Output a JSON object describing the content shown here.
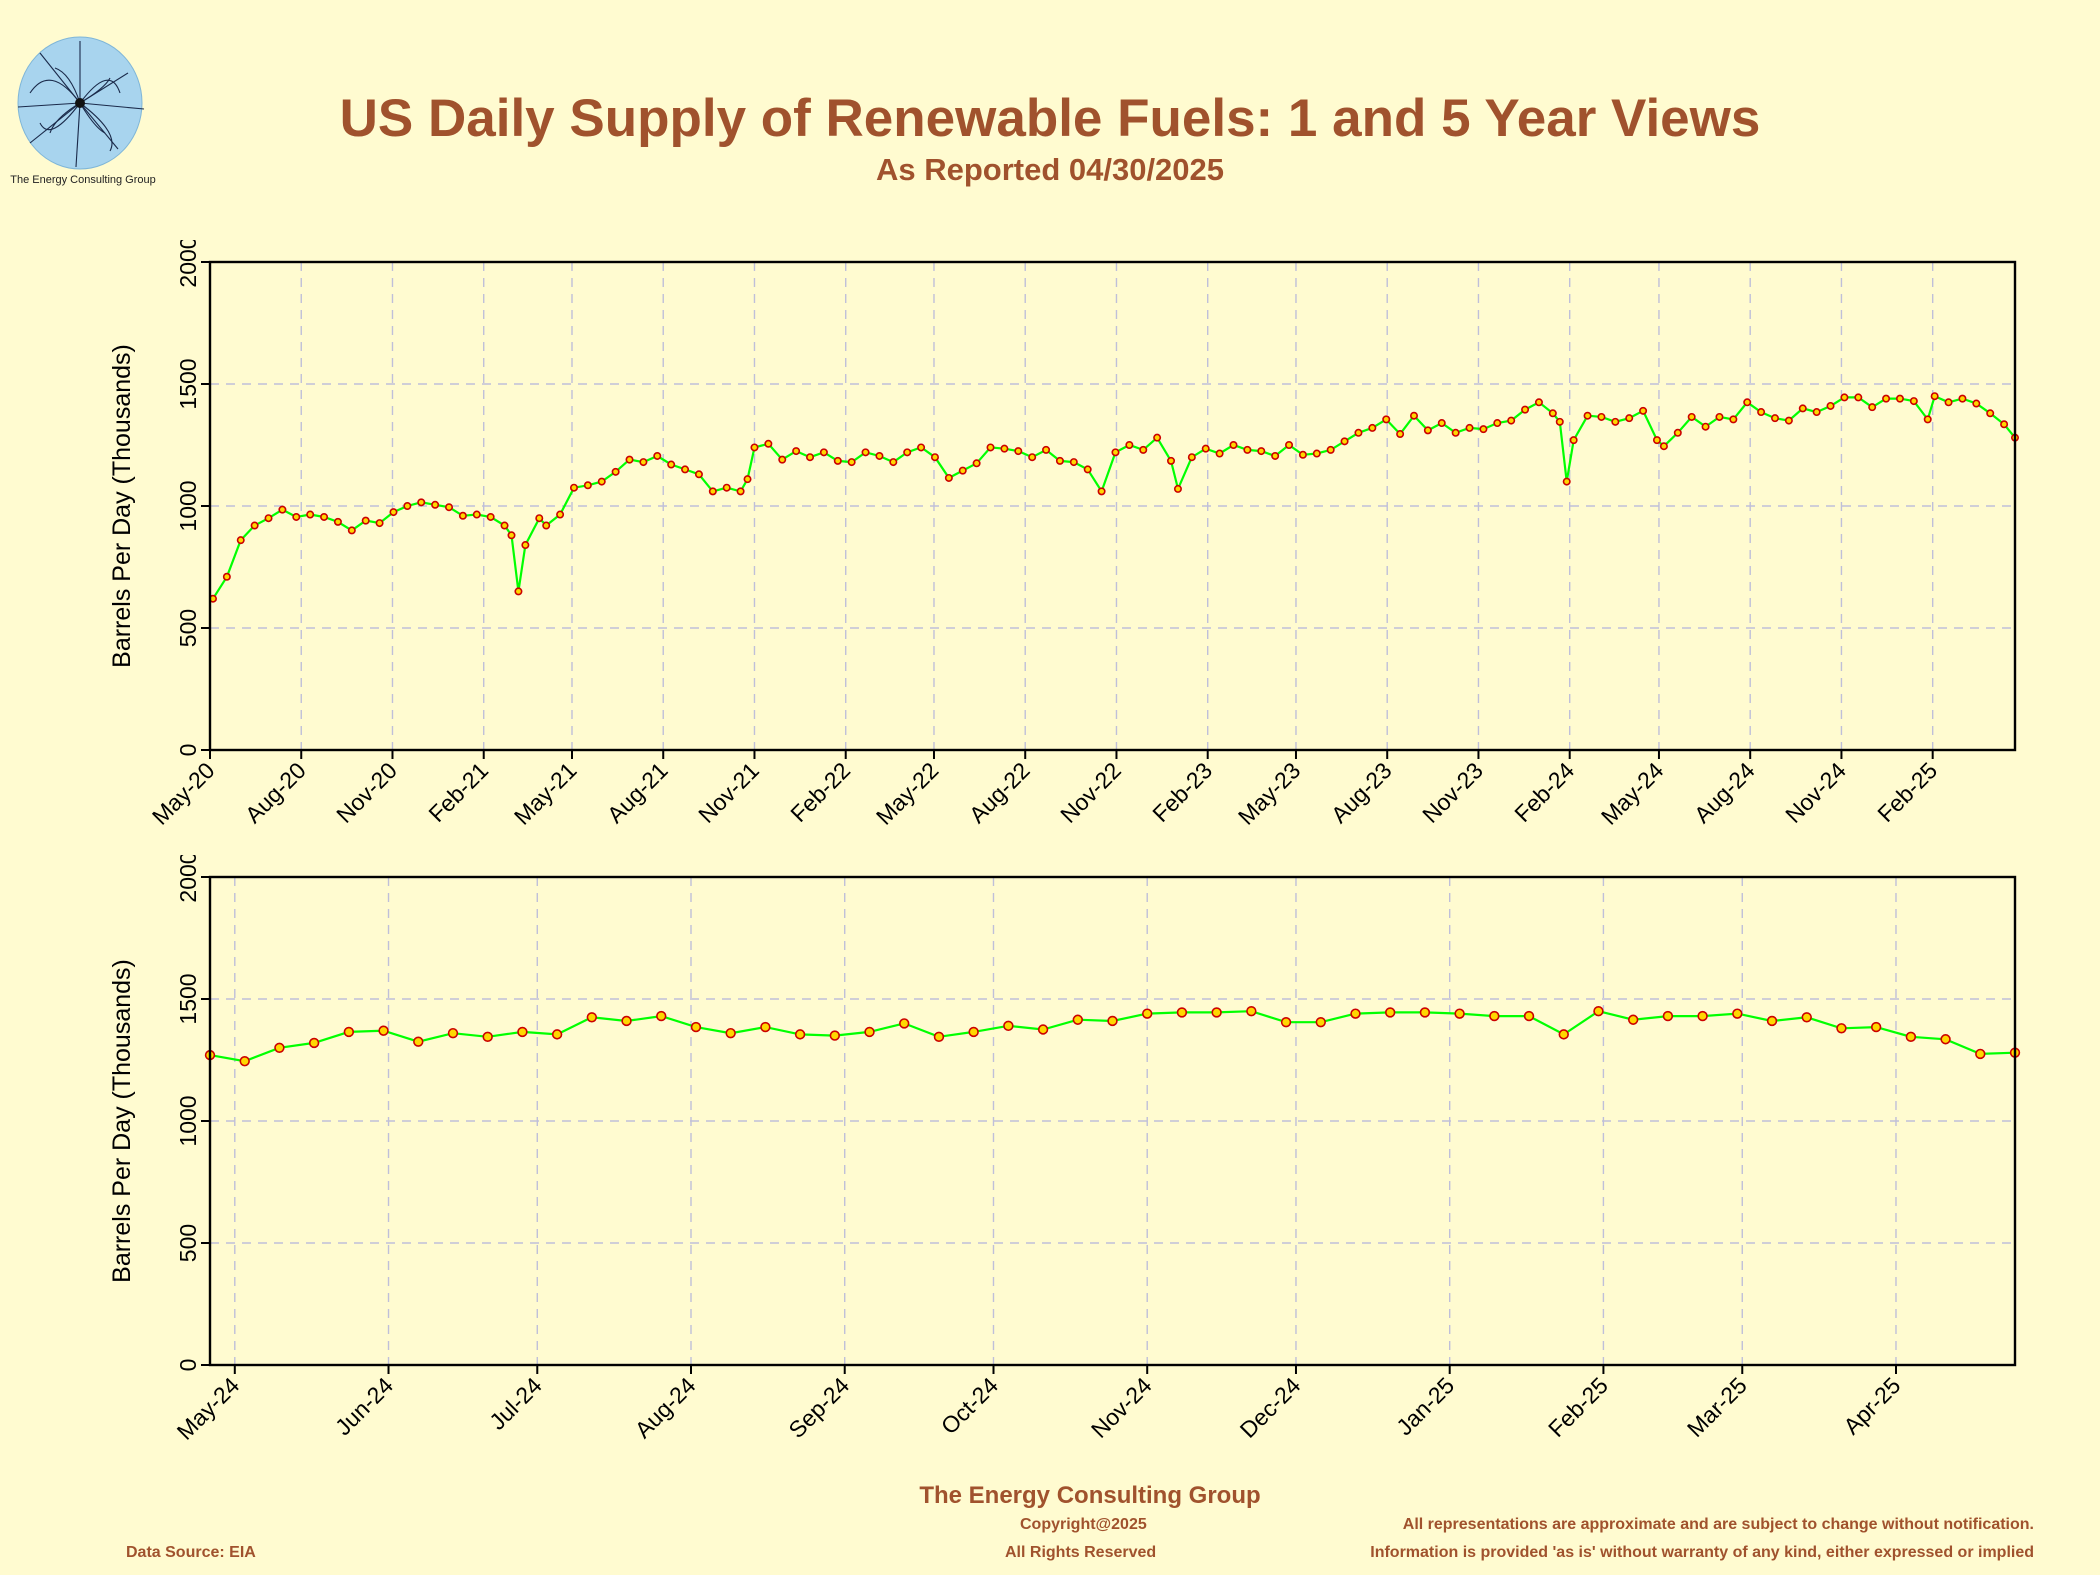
{
  "page": {
    "title": "US Daily Supply of Renewable Fuels: 1 and 5 Year Views",
    "subtitle": "As Reported 04/30/2025",
    "logo_caption": "The Energy Consulting Group",
    "footer": {
      "company": "The Energy Consulting Group",
      "copyright": "Copyright@2025",
      "rights": "All Rights Reserved",
      "data_source": "Data Source: EIA",
      "disclaimer_line1": "All representations are approximate and are subject to change without notification.",
      "disclaimer_line2": "Information is provided 'as is' without warranty of any kind, either expressed or implied"
    }
  },
  "colors": {
    "background": "#fffbd0",
    "line": "#00ff00",
    "marker_edge": "#cc0000",
    "marker_fill": "#ffd700",
    "grid": "#bfbfd9",
    "axis": "#000000",
    "title": "#a0522d"
  },
  "chart_data": [
    {
      "type": "line",
      "view": "5-year",
      "ylabel": "Barrels Per Day (Thousands)",
      "ylim": [
        0,
        2000
      ],
      "yticks": [
        0,
        500,
        1000,
        1500,
        2000
      ],
      "xlim": [
        "2020-05-01",
        "2025-04-25"
      ],
      "xticks": [
        {
          "date": "2020-05-01",
          "label": "May-20"
        },
        {
          "date": "2020-08-01",
          "label": "Aug-20"
        },
        {
          "date": "2020-11-01",
          "label": "Nov-20"
        },
        {
          "date": "2021-02-01",
          "label": "Feb-21"
        },
        {
          "date": "2021-05-01",
          "label": "May-21"
        },
        {
          "date": "2021-08-01",
          "label": "Aug-21"
        },
        {
          "date": "2021-11-01",
          "label": "Nov-21"
        },
        {
          "date": "2022-02-01",
          "label": "Feb-22"
        },
        {
          "date": "2022-05-01",
          "label": "May-22"
        },
        {
          "date": "2022-08-01",
          "label": "Aug-22"
        },
        {
          "date": "2022-11-01",
          "label": "Nov-22"
        },
        {
          "date": "2023-02-01",
          "label": "Feb-23"
        },
        {
          "date": "2023-05-01",
          "label": "May-23"
        },
        {
          "date": "2023-08-01",
          "label": "Aug-23"
        },
        {
          "date": "2023-11-01",
          "label": "Nov-23"
        },
        {
          "date": "2024-02-01",
          "label": "Feb-24"
        },
        {
          "date": "2024-05-01",
          "label": "May-24"
        },
        {
          "date": "2024-08-01",
          "label": "Aug-24"
        },
        {
          "date": "2024-11-01",
          "label": "Nov-24"
        },
        {
          "date": "2025-02-01",
          "label": "Feb-25"
        }
      ],
      "grid": true,
      "series": [
        {
          "marker": "circle",
          "points": [
            [
              "2020-05-04",
              620
            ],
            [
              "2020-05-18",
              710
            ],
            [
              "2020-06-01",
              860
            ],
            [
              "2020-06-15",
              920
            ],
            [
              "2020-06-29",
              950
            ],
            [
              "2020-07-13",
              985
            ],
            [
              "2020-07-27",
              955
            ],
            [
              "2020-08-10",
              965
            ],
            [
              "2020-08-24",
              955
            ],
            [
              "2020-09-07",
              935
            ],
            [
              "2020-09-21",
              900
            ],
            [
              "2020-10-05",
              940
            ],
            [
              "2020-10-19",
              930
            ],
            [
              "2020-11-02",
              975
            ],
            [
              "2020-11-16",
              1000
            ],
            [
              "2020-11-30",
              1015
            ],
            [
              "2020-12-14",
              1005
            ],
            [
              "2020-12-28",
              995
            ],
            [
              "2021-01-11",
              960
            ],
            [
              "2021-01-25",
              965
            ],
            [
              "2021-02-08",
              955
            ],
            [
              "2021-02-22",
              920
            ],
            [
              "2021-03-01",
              880
            ],
            [
              "2021-03-08",
              650
            ],
            [
              "2021-03-15",
              840
            ],
            [
              "2021-03-29",
              950
            ],
            [
              "2021-04-05",
              920
            ],
            [
              "2021-04-19",
              965
            ],
            [
              "2021-05-03",
              1075
            ],
            [
              "2021-05-17",
              1085
            ],
            [
              "2021-05-31",
              1100
            ],
            [
              "2021-06-14",
              1140
            ],
            [
              "2021-06-28",
              1190
            ],
            [
              "2021-07-12",
              1180
            ],
            [
              "2021-07-26",
              1205
            ],
            [
              "2021-08-09",
              1170
            ],
            [
              "2021-08-23",
              1150
            ],
            [
              "2021-09-06",
              1130
            ],
            [
              "2021-09-20",
              1060
            ],
            [
              "2021-10-04",
              1075
            ],
            [
              "2021-10-18",
              1060
            ],
            [
              "2021-10-25",
              1110
            ],
            [
              "2021-11-01",
              1240
            ],
            [
              "2021-11-15",
              1255
            ],
            [
              "2021-11-29",
              1190
            ],
            [
              "2021-12-13",
              1225
            ],
            [
              "2021-12-27",
              1200
            ],
            [
              "2022-01-10",
              1220
            ],
            [
              "2022-01-24",
              1185
            ],
            [
              "2022-02-07",
              1180
            ],
            [
              "2022-02-21",
              1220
            ],
            [
              "2022-03-07",
              1205
            ],
            [
              "2022-03-21",
              1180
            ],
            [
              "2022-04-04",
              1220
            ],
            [
              "2022-04-18",
              1240
            ],
            [
              "2022-05-02",
              1200
            ],
            [
              "2022-05-16",
              1115
            ],
            [
              "2022-05-30",
              1145
            ],
            [
              "2022-06-13",
              1175
            ],
            [
              "2022-06-27",
              1240
            ],
            [
              "2022-07-11",
              1235
            ],
            [
              "2022-07-25",
              1225
            ],
            [
              "2022-08-08",
              1200
            ],
            [
              "2022-08-22",
              1230
            ],
            [
              "2022-09-05",
              1185
            ],
            [
              "2022-09-19",
              1180
            ],
            [
              "2022-10-03",
              1150
            ],
            [
              "2022-10-17",
              1060
            ],
            [
              "2022-10-31",
              1220
            ],
            [
              "2022-11-14",
              1250
            ],
            [
              "2022-11-28",
              1230
            ],
            [
              "2022-12-12",
              1280
            ],
            [
              "2022-12-26",
              1185
            ],
            [
              "2023-01-02",
              1070
            ],
            [
              "2023-01-16",
              1200
            ],
            [
              "2023-01-30",
              1235
            ],
            [
              "2023-02-13",
              1215
            ],
            [
              "2023-02-27",
              1250
            ],
            [
              "2023-03-13",
              1230
            ],
            [
              "2023-03-27",
              1225
            ],
            [
              "2023-04-10",
              1205
            ],
            [
              "2023-04-24",
              1250
            ],
            [
              "2023-05-08",
              1210
            ],
            [
              "2023-05-22",
              1215
            ],
            [
              "2023-06-05",
              1230
            ],
            [
              "2023-06-19",
              1265
            ],
            [
              "2023-07-03",
              1300
            ],
            [
              "2023-07-17",
              1320
            ],
            [
              "2023-07-31",
              1355
            ],
            [
              "2023-08-14",
              1295
            ],
            [
              "2023-08-28",
              1370
            ],
            [
              "2023-09-11",
              1310
            ],
            [
              "2023-09-25",
              1340
            ],
            [
              "2023-10-09",
              1300
            ],
            [
              "2023-10-23",
              1320
            ],
            [
              "2023-11-06",
              1315
            ],
            [
              "2023-11-20",
              1340
            ],
            [
              "2023-12-04",
              1350
            ],
            [
              "2023-12-18",
              1395
            ],
            [
              "2024-01-01",
              1425
            ],
            [
              "2024-01-15",
              1380
            ],
            [
              "2024-01-22",
              1345
            ],
            [
              "2024-01-29",
              1100
            ],
            [
              "2024-02-05",
              1270
            ],
            [
              "2024-02-19",
              1370
            ],
            [
              "2024-03-04",
              1365
            ],
            [
              "2024-03-18",
              1345
            ],
            [
              "2024-04-01",
              1360
            ],
            [
              "2024-04-15",
              1390
            ],
            [
              "2024-04-29",
              1270
            ],
            [
              "2024-05-06",
              1245
            ],
            [
              "2024-05-20",
              1300
            ],
            [
              "2024-06-03",
              1365
            ],
            [
              "2024-06-17",
              1325
            ],
            [
              "2024-07-01",
              1365
            ],
            [
              "2024-07-15",
              1355
            ],
            [
              "2024-07-29",
              1425
            ],
            [
              "2024-08-12",
              1385
            ],
            [
              "2024-08-26",
              1360
            ],
            [
              "2024-09-09",
              1350
            ],
            [
              "2024-09-23",
              1400
            ],
            [
              "2024-10-07",
              1385
            ],
            [
              "2024-10-21",
              1410
            ],
            [
              "2024-11-04",
              1445
            ],
            [
              "2024-11-18",
              1445
            ],
            [
              "2024-12-02",
              1405
            ],
            [
              "2024-12-16",
              1440
            ],
            [
              "2024-12-30",
              1440
            ],
            [
              "2025-01-13",
              1430
            ],
            [
              "2025-01-27",
              1355
            ],
            [
              "2025-02-03",
              1450
            ],
            [
              "2025-02-17",
              1425
            ],
            [
              "2025-03-03",
              1440
            ],
            [
              "2025-03-17",
              1420
            ],
            [
              "2025-03-31",
              1380
            ],
            [
              "2025-04-14",
              1335
            ],
            [
              "2025-04-25",
              1280
            ]
          ]
        }
      ]
    },
    {
      "type": "line",
      "view": "1-year",
      "ylabel": "Barrels Per Day (Thousands)",
      "ylim": [
        0,
        2000
      ],
      "yticks": [
        0,
        500,
        1000,
        1500,
        2000
      ],
      "xlim": [
        "2024-04-26",
        "2025-04-25"
      ],
      "xticks": [
        {
          "date": "2024-05-01",
          "label": "May-24"
        },
        {
          "date": "2024-06-01",
          "label": "Jun-24"
        },
        {
          "date": "2024-07-01",
          "label": "Jul-24"
        },
        {
          "date": "2024-08-01",
          "label": "Aug-24"
        },
        {
          "date": "2024-09-01",
          "label": "Sep-24"
        },
        {
          "date": "2024-10-01",
          "label": "Oct-24"
        },
        {
          "date": "2024-11-01",
          "label": "Nov-24"
        },
        {
          "date": "2024-12-01",
          "label": "Dec-24"
        },
        {
          "date": "2025-01-01",
          "label": "Jan-25"
        },
        {
          "date": "2025-02-01",
          "label": "Feb-25"
        },
        {
          "date": "2025-03-01",
          "label": "Mar-25"
        },
        {
          "date": "2025-04-01",
          "label": "Apr-25"
        }
      ],
      "grid": true,
      "series": [
        {
          "marker": "circle",
          "points": [
            [
              "2024-04-26",
              1270
            ],
            [
              "2024-05-03",
              1245
            ],
            [
              "2024-05-10",
              1300
            ],
            [
              "2024-05-17",
              1320
            ],
            [
              "2024-05-24",
              1365
            ],
            [
              "2024-05-31",
              1370
            ],
            [
              "2024-06-07",
              1325
            ],
            [
              "2024-06-14",
              1360
            ],
            [
              "2024-06-21",
              1345
            ],
            [
              "2024-06-28",
              1365
            ],
            [
              "2024-07-05",
              1355
            ],
            [
              "2024-07-12",
              1425
            ],
            [
              "2024-07-19",
              1410
            ],
            [
              "2024-07-26",
              1430
            ],
            [
              "2024-08-02",
              1385
            ],
            [
              "2024-08-09",
              1360
            ],
            [
              "2024-08-16",
              1385
            ],
            [
              "2024-08-23",
              1355
            ],
            [
              "2024-08-30",
              1350
            ],
            [
              "2024-09-06",
              1365
            ],
            [
              "2024-09-13",
              1400
            ],
            [
              "2024-09-20",
              1345
            ],
            [
              "2024-09-27",
              1365
            ],
            [
              "2024-10-04",
              1390
            ],
            [
              "2024-10-11",
              1375
            ],
            [
              "2024-10-18",
              1415
            ],
            [
              "2024-10-25",
              1410
            ],
            [
              "2024-11-01",
              1440
            ],
            [
              "2024-11-08",
              1445
            ],
            [
              "2024-11-15",
              1445
            ],
            [
              "2024-11-22",
              1450
            ],
            [
              "2024-11-29",
              1405
            ],
            [
              "2024-12-06",
              1405
            ],
            [
              "2024-12-13",
              1440
            ],
            [
              "2024-12-20",
              1445
            ],
            [
              "2024-12-27",
              1445
            ],
            [
              "2025-01-03",
              1440
            ],
            [
              "2025-01-10",
              1430
            ],
            [
              "2025-01-17",
              1430
            ],
            [
              "2025-01-24",
              1355
            ],
            [
              "2025-01-31",
              1450
            ],
            [
              "2025-02-07",
              1415
            ],
            [
              "2025-02-14",
              1430
            ],
            [
              "2025-02-21",
              1430
            ],
            [
              "2025-02-28",
              1440
            ],
            [
              "2025-03-07",
              1410
            ],
            [
              "2025-03-14",
              1425
            ],
            [
              "2025-03-21",
              1380
            ],
            [
              "2025-03-28",
              1385
            ],
            [
              "2025-04-04",
              1345
            ],
            [
              "2025-04-11",
              1335
            ],
            [
              "2025-04-18",
              1275
            ],
            [
              "2025-04-25",
              1280
            ]
          ]
        }
      ]
    }
  ]
}
